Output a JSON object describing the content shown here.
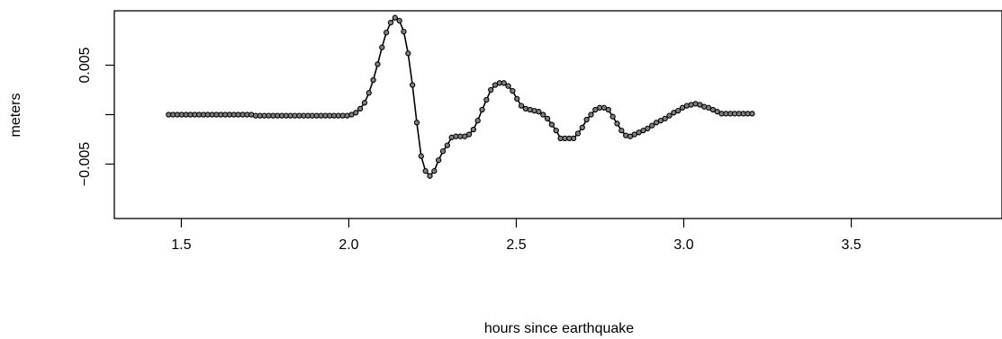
{
  "chart_data": {
    "type": "line",
    "xlabel": "hours since earthquake",
    "ylabel": "meters",
    "xlim": [
      1.3,
      3.95
    ],
    "ylim": [
      -0.0105,
      0.0105
    ],
    "x_ticks": [
      1.5,
      2.0,
      2.5,
      3.0,
      3.5
    ],
    "x_tick_labels": [
      "1.5",
      "2.0",
      "2.5",
      "3.0",
      "3.5"
    ],
    "y_ticks": [
      -0.005,
      0.0,
      0.005
    ],
    "y_tick_labels": [
      "−0.005",
      "",
      "0.005"
    ],
    "markers": "open-circle",
    "line_color": "#000000",
    "marker_fill": "#808080",
    "series": [
      {
        "x": [
          1.462,
          1.475,
          1.488,
          1.501,
          1.514,
          1.527,
          1.54,
          1.553,
          1.566,
          1.579,
          1.592,
          1.605,
          1.618,
          1.631,
          1.644,
          1.657,
          1.67,
          1.683,
          1.696,
          1.709,
          1.722,
          1.735,
          1.748,
          1.761,
          1.774,
          1.787,
          1.8,
          1.813,
          1.826,
          1.839,
          1.852,
          1.865,
          1.878,
          1.891,
          1.904,
          1.917,
          1.93,
          1.943,
          1.956,
          1.969,
          1.982,
          1.995,
          2.008,
          2.021,
          2.034,
          2.047,
          2.06,
          2.073,
          2.086,
          2.099,
          2.112,
          2.125,
          2.138,
          2.151,
          2.164,
          2.177,
          2.19,
          2.203,
          2.216,
          2.229,
          2.242,
          2.255,
          2.268,
          2.281,
          2.294,
          2.307,
          2.32,
          2.333,
          2.346,
          2.359,
          2.372,
          2.385,
          2.398,
          2.411,
          2.424,
          2.437,
          2.45,
          2.463,
          2.476,
          2.489,
          2.502,
          2.515,
          2.528,
          2.541,
          2.554,
          2.567,
          2.58,
          2.593,
          2.606,
          2.619,
          2.632,
          2.645,
          2.658,
          2.671,
          2.684,
          2.697,
          2.71,
          2.723,
          2.736,
          2.749,
          2.762,
          2.775,
          2.788,
          2.801,
          2.814,
          2.827,
          2.84,
          2.853,
          2.866,
          2.879,
          2.892,
          2.905,
          2.918,
          2.931,
          2.944,
          2.957,
          2.97,
          2.983,
          2.996,
          3.009,
          3.022,
          3.035,
          3.048,
          3.061,
          3.074,
          3.087,
          3.1,
          3.113,
          3.126,
          3.139,
          3.152,
          3.165,
          3.178,
          3.191,
          3.204
        ],
        "y": [
          0.0,
          0.0,
          0.0,
          0.0,
          0.0,
          0.0,
          0.0,
          0.0,
          0.0,
          0.0,
          0.0,
          0.0,
          0.0,
          0.0,
          0.0,
          0.0,
          0.0,
          0.0,
          0.0,
          0.0,
          -0.0001,
          -0.0001,
          -0.0001,
          -0.0001,
          -0.0001,
          -0.0001,
          -0.0001,
          -0.0001,
          -0.0001,
          -0.0001,
          -0.0001,
          -0.0001,
          -0.0001,
          -0.0001,
          -0.0001,
          -0.0001,
          -0.0001,
          -0.0001,
          -0.0001,
          -0.0001,
          -0.0001,
          -0.0001,
          0.0,
          0.0002,
          0.0006,
          0.0012,
          0.0022,
          0.0035,
          0.0051,
          0.0068,
          0.0083,
          0.0093,
          0.0098,
          0.0095,
          0.0084,
          0.0062,
          0.003,
          -0.0008,
          -0.0042,
          -0.0057,
          -0.0062,
          -0.0057,
          -0.0046,
          -0.0037,
          -0.0031,
          -0.0023,
          -0.0022,
          -0.0022,
          -0.0022,
          -0.002,
          -0.0015,
          -0.0006,
          0.0005,
          0.0015,
          0.0025,
          0.003,
          0.0032,
          0.0032,
          0.0029,
          0.0024,
          0.0016,
          0.0009,
          0.0006,
          0.0005,
          0.0004,
          0.0003,
          0.0,
          -0.0004,
          -0.001,
          -0.0016,
          -0.0024,
          -0.0024,
          -0.0024,
          -0.0024,
          -0.0019,
          -0.0013,
          -0.0005,
          0.0,
          0.0005,
          0.0007,
          0.0007,
          0.0005,
          -0.0002,
          -0.0009,
          -0.0016,
          -0.0021,
          -0.0022,
          -0.002,
          -0.0018,
          -0.0016,
          -0.0014,
          -0.0011,
          -0.0008,
          -0.0006,
          -0.0004,
          -0.0001,
          0.0002,
          0.0004,
          0.0007,
          0.0009,
          0.001,
          0.0011,
          0.001,
          0.0008,
          0.0007,
          0.0005,
          0.0003,
          0.0001,
          0.0001,
          0.0001,
          0.0001,
          0.0001,
          0.0001,
          0.0001,
          0.0001
        ]
      }
    ]
  }
}
